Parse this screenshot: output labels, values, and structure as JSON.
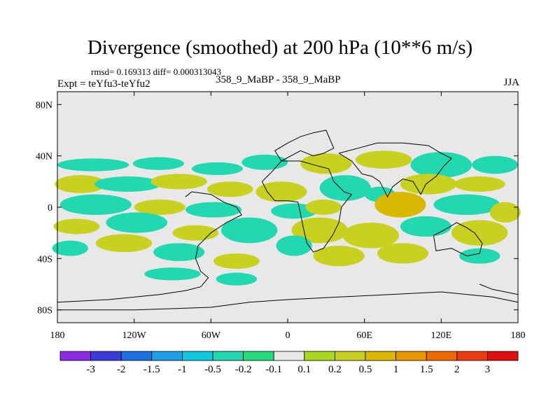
{
  "chart_data": {
    "type": "heatmap",
    "title": "Divergence (smoothed) at 200 hPa (10**6 m/s)",
    "stats_line": "rmsd= 0.169313 diff= 0.000313043",
    "experiment": "Expt = teYfu3-teYfu2",
    "case": "358_9_MaBP - 358_9_MaBP",
    "season": "JJA",
    "xlim": [
      -180,
      180
    ],
    "ylim": [
      -90,
      90
    ],
    "x_ticks": [
      {
        "value": -180,
        "label": "180"
      },
      {
        "value": -120,
        "label": "120W"
      },
      {
        "value": -60,
        "label": "60W"
      },
      {
        "value": 0,
        "label": "0"
      },
      {
        "value": 60,
        "label": "60E"
      },
      {
        "value": 120,
        "label": "120E"
      },
      {
        "value": 180,
        "label": "180"
      }
    ],
    "y_ticks": [
      {
        "value": 80,
        "label": "80N"
      },
      {
        "value": 40,
        "label": "40N"
      },
      {
        "value": 0,
        "label": "0"
      },
      {
        "value": -40,
        "label": "40S"
      },
      {
        "value": -80,
        "label": "80S"
      }
    ],
    "colorbar": {
      "colors": [
        "#8a2be2",
        "#3b3bd9",
        "#1e6fe0",
        "#1ea0e6",
        "#10c8e0",
        "#22d8b0",
        "#22dc7c",
        "#e8e8e8",
        "#a8d820",
        "#c8d020",
        "#d8b800",
        "#e89800",
        "#ec6a00",
        "#e83c10",
        "#e01010"
      ],
      "labels": [
        "-3",
        "-2",
        "-1.5",
        "-1",
        "-0.5",
        "-0.2",
        "-0.1",
        "0.1",
        "0.2",
        "0.5",
        "1",
        "1.5",
        "2",
        "3"
      ]
    },
    "map_background": "#e8e8e8",
    "field_blobs": [
      {
        "lon": -152,
        "lat": 33,
        "rx": 28,
        "ry": 5,
        "level": -0.3
      },
      {
        "lon": -101,
        "lat": 34,
        "rx": 20,
        "ry": 5,
        "level": -0.3
      },
      {
        "lon": -55,
        "lat": 30,
        "rx": 20,
        "ry": 5,
        "level": -0.3
      },
      {
        "lon": -18,
        "lat": 35,
        "rx": 18,
        "ry": 6,
        "level": -0.3
      },
      {
        "lon": 30,
        "lat": 34,
        "rx": 20,
        "ry": 8,
        "level": 0.5
      },
      {
        "lon": 75,
        "lat": 37,
        "rx": 22,
        "ry": 7,
        "level": 0.3
      },
      {
        "lon": 120,
        "lat": 33,
        "rx": 24,
        "ry": 10,
        "level": -0.3
      },
      {
        "lon": 162,
        "lat": 33,
        "rx": 18,
        "ry": 7,
        "level": -0.3
      },
      {
        "lon": -162,
        "lat": 18,
        "rx": 20,
        "ry": 7,
        "level": 0.4
      },
      {
        "lon": -125,
        "lat": 18,
        "rx": 26,
        "ry": 6,
        "level": -0.3
      },
      {
        "lon": -85,
        "lat": 20,
        "rx": 22,
        "ry": 6,
        "level": 0.4
      },
      {
        "lon": -45,
        "lat": 14,
        "rx": 18,
        "ry": 6,
        "level": 0.3
      },
      {
        "lon": -5,
        "lat": 12,
        "rx": 20,
        "ry": 8,
        "level": 0.5
      },
      {
        "lon": 45,
        "lat": 15,
        "rx": 20,
        "ry": 10,
        "level": -0.4
      },
      {
        "lon": 72,
        "lat": 10,
        "rx": 12,
        "ry": 6,
        "level": -0.3
      },
      {
        "lon": 110,
        "lat": 18,
        "rx": 22,
        "ry": 8,
        "level": 0.3
      },
      {
        "lon": 150,
        "lat": 18,
        "rx": 20,
        "ry": 6,
        "level": 0.4
      },
      {
        "lon": -150,
        "lat": 2,
        "rx": 28,
        "ry": 8,
        "level": -0.3
      },
      {
        "lon": -100,
        "lat": 0,
        "rx": 20,
        "ry": 6,
        "level": 0.4
      },
      {
        "lon": -58,
        "lat": -2,
        "rx": 22,
        "ry": 6,
        "level": -0.3
      },
      {
        "lon": 5,
        "lat": -3,
        "rx": 18,
        "ry": 6,
        "level": -0.3
      },
      {
        "lon": 28,
        "lat": 0,
        "rx": 14,
        "ry": 6,
        "level": 0.3
      },
      {
        "lon": 88,
        "lat": 2,
        "rx": 20,
        "ry": 10,
        "level": 0.8
      },
      {
        "lon": 140,
        "lat": 2,
        "rx": 26,
        "ry": 8,
        "level": -0.3
      },
      {
        "lon": 170,
        "lat": -4,
        "rx": 12,
        "ry": 8,
        "level": 0.3
      },
      {
        "lon": -165,
        "lat": -15,
        "rx": 18,
        "ry": 6,
        "level": 0.4
      },
      {
        "lon": -118,
        "lat": -12,
        "rx": 24,
        "ry": 8,
        "level": -0.3
      },
      {
        "lon": -72,
        "lat": -20,
        "rx": 18,
        "ry": 6,
        "level": 0.3
      },
      {
        "lon": -30,
        "lat": -18,
        "rx": 22,
        "ry": 10,
        "level": -0.4
      },
      {
        "lon": 25,
        "lat": -18,
        "rx": 22,
        "ry": 10,
        "level": 0.4
      },
      {
        "lon": 65,
        "lat": -22,
        "rx": 22,
        "ry": 10,
        "level": 0.4
      },
      {
        "lon": 108,
        "lat": -15,
        "rx": 20,
        "ry": 8,
        "level": -0.3
      },
      {
        "lon": 150,
        "lat": -20,
        "rx": 22,
        "ry": 10,
        "level": 0.4
      },
      {
        "lon": -170,
        "lat": -32,
        "rx": 14,
        "ry": 6,
        "level": -0.3
      },
      {
        "lon": -128,
        "lat": -28,
        "rx": 22,
        "ry": 7,
        "level": 0.3
      },
      {
        "lon": -85,
        "lat": -35,
        "rx": 20,
        "ry": 7,
        "level": -0.3
      },
      {
        "lon": -40,
        "lat": -42,
        "rx": 18,
        "ry": 6,
        "level": 0.3
      },
      {
        "lon": 5,
        "lat": -30,
        "rx": 14,
        "ry": 8,
        "level": -0.3
      },
      {
        "lon": 40,
        "lat": -38,
        "rx": 20,
        "ry": 8,
        "level": 0.3
      },
      {
        "lon": 90,
        "lat": -36,
        "rx": 20,
        "ry": 8,
        "level": 0.3
      },
      {
        "lon": 150,
        "lat": -38,
        "rx": 16,
        "ry": 6,
        "level": -0.3
      },
      {
        "lon": -90,
        "lat": -52,
        "rx": 22,
        "ry": 5,
        "level": -0.3
      },
      {
        "lon": -40,
        "lat": -56,
        "rx": 16,
        "ry": 5,
        "level": -0.3
      }
    ]
  }
}
